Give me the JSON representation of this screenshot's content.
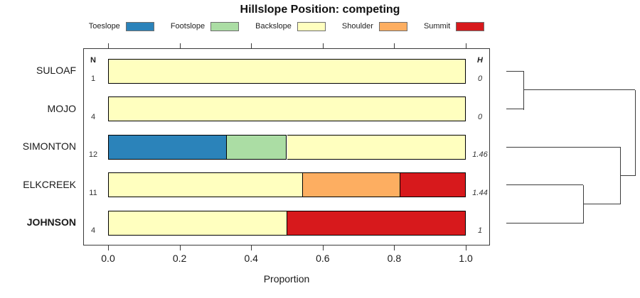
{
  "chart_data": {
    "type": "bar",
    "variant": "horizontal-stacked-proportion",
    "title": "Hillslope Position: competing",
    "xlabel": "Proportion",
    "xlim": [
      0,
      1
    ],
    "xticks": [
      0,
      0.2,
      0.4,
      0.6,
      0.8,
      1.0
    ],
    "xtick_labels": [
      "0.0",
      "0.2",
      "0.4",
      "0.6",
      "0.8",
      "1.0"
    ],
    "grid": false,
    "legend_position": "top",
    "n_header": "N",
    "h_header": "H",
    "legend": [
      {
        "label": "Toeslope",
        "color": "#2B83BA"
      },
      {
        "label": "Footslope",
        "color": "#ABDDA4"
      },
      {
        "label": "Backslope",
        "color": "#FFFFBF"
      },
      {
        "label": "Shoulder",
        "color": "#FDAE61"
      },
      {
        "label": "Summit",
        "color": "#D7191C"
      }
    ],
    "rows": [
      {
        "label": "SULOAF",
        "bold": false,
        "n": "1",
        "h": "0",
        "segments": [
          {
            "position": "Backslope",
            "proportion": 1.0
          }
        ]
      },
      {
        "label": "MOJO",
        "bold": false,
        "n": "4",
        "h": "0",
        "segments": [
          {
            "position": "Backslope",
            "proportion": 1.0
          }
        ]
      },
      {
        "label": "SIMONTON",
        "bold": false,
        "n": "12",
        "h": "1.46",
        "segments": [
          {
            "position": "Toeslope",
            "proportion": 0.333
          },
          {
            "position": "Footslope",
            "proportion": 0.167
          },
          {
            "position": "Backslope",
            "proportion": 0.5
          }
        ]
      },
      {
        "label": "ELKCREEK",
        "bold": false,
        "n": "11",
        "h": "1.44",
        "segments": [
          {
            "position": "Backslope",
            "proportion": 0.545
          },
          {
            "position": "Shoulder",
            "proportion": 0.273
          },
          {
            "position": "Summit",
            "proportion": 0.182
          }
        ]
      },
      {
        "label": "JOHNSON",
        "bold": true,
        "n": "4",
        "h": "1",
        "segments": [
          {
            "position": "Backslope",
            "proportion": 0.5
          },
          {
            "position": "Summit",
            "proportion": 0.5
          }
        ]
      }
    ],
    "dendrogram": {
      "leaf_order": [
        "SULOAF",
        "MOJO",
        "SIMONTON",
        "ELKCREEK",
        "JOHNSON"
      ],
      "merges": [
        {
          "a": "leaf:0",
          "b": "leaf:1",
          "height": 0.138
        },
        {
          "a": "leaf:3",
          "b": "leaf:4",
          "height": 0.597
        },
        {
          "a": "leaf:2",
          "b": "merge:1",
          "height": 0.884
        },
        {
          "a": "merge:0",
          "b": "merge:2",
          "height": 1.0
        }
      ]
    }
  }
}
